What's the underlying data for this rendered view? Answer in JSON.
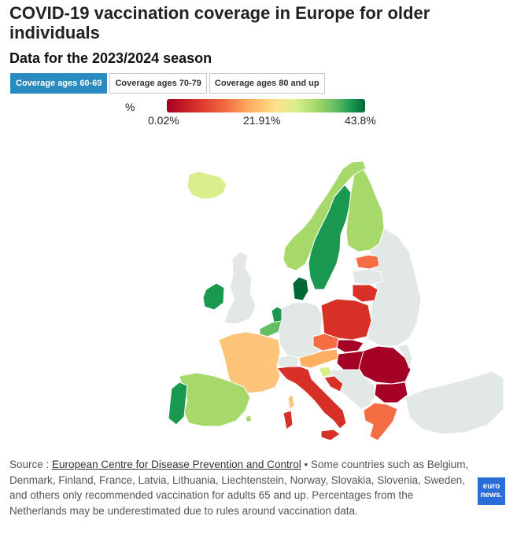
{
  "title": "COVID-19 vaccination coverage in Europe for older individuals",
  "subtitle": "Data for the 2023/2024 season",
  "tabs": [
    {
      "label": "Coverage ages 60-69",
      "active": true
    },
    {
      "label": "Coverage ages 70-79",
      "active": false
    },
    {
      "label": "Coverage ages 80 and up",
      "active": false
    }
  ],
  "legend": {
    "unit": "%",
    "min_label": "0.02%",
    "mid_label": "21.91%",
    "max_label": "43.8%",
    "min": 0.02,
    "max": 43.8,
    "colors": [
      "#a50026",
      "#d73027",
      "#f46d43",
      "#fdae61",
      "#fee08b",
      "#d9ef8b",
      "#a6d96a",
      "#66bd63",
      "#1a9850",
      "#006837"
    ],
    "no_data_color": "#e2e8e6"
  },
  "source": {
    "prefix": "Source : ",
    "link_text": "European Centre for Disease Prevention and Control",
    "note": " • Some countries such as Belgium, Denmark, Finland, France, Latvia, Lithuania, Liechtenstein, Norway, Slovakia, Slovenia, Sweden, and others only recommended vaccination for adults 65 and up. Percentages from the Netherlands may be underestimated due to rules around vaccination data."
  },
  "logo": {
    "line1": "euro",
    "line2": "news."
  }
}
